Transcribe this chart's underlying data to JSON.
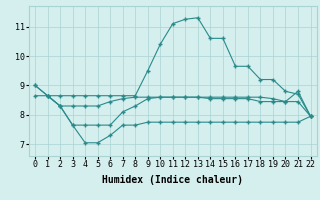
{
  "line1_x": [
    0,
    1,
    2,
    3,
    4,
    5,
    6,
    7,
    8,
    9,
    10,
    11,
    12,
    13,
    14,
    15,
    16,
    17,
    18,
    19,
    20,
    21,
    22
  ],
  "line1_y": [
    9.0,
    8.65,
    8.65,
    8.65,
    8.65,
    8.65,
    8.65,
    8.65,
    8.65,
    9.5,
    10.4,
    11.1,
    11.25,
    11.3,
    10.6,
    10.6,
    9.65,
    9.65,
    9.2,
    9.2,
    8.8,
    8.7,
    7.95
  ],
  "line2_x": [
    0,
    1,
    2,
    3,
    4,
    5,
    6,
    7,
    8,
    9,
    10,
    11,
    12,
    13,
    14,
    15,
    16,
    17,
    18,
    19,
    20,
    21,
    22
  ],
  "line2_y": [
    8.65,
    8.65,
    8.3,
    8.3,
    8.3,
    8.3,
    8.45,
    8.55,
    8.6,
    8.6,
    8.6,
    8.6,
    8.6,
    8.6,
    8.6,
    8.6,
    8.6,
    8.6,
    8.6,
    8.55,
    8.45,
    8.45,
    7.95
  ],
  "line3_x": [
    1,
    2,
    3,
    4,
    5,
    6,
    7,
    8,
    9,
    10,
    11,
    12,
    13,
    14,
    15,
    16,
    17,
    18,
    19,
    20,
    21,
    22
  ],
  "line3_y": [
    8.65,
    8.3,
    7.65,
    7.05,
    7.05,
    7.3,
    7.65,
    7.65,
    7.75,
    7.75,
    7.75,
    7.75,
    7.75,
    7.75,
    7.75,
    7.75,
    7.75,
    7.75,
    7.75,
    7.75,
    7.75,
    7.95
  ],
  "line4_x": [
    0,
    1,
    2,
    3,
    4,
    5,
    6,
    7,
    8,
    9,
    10,
    11,
    12,
    13,
    14,
    15,
    16,
    17,
    18,
    19,
    20,
    21,
    22
  ],
  "line4_y": [
    9.0,
    8.65,
    8.3,
    7.65,
    7.65,
    7.65,
    7.65,
    8.1,
    8.3,
    8.55,
    8.6,
    8.6,
    8.6,
    8.6,
    8.55,
    8.55,
    8.55,
    8.55,
    8.45,
    8.45,
    8.45,
    8.8,
    7.95
  ],
  "line_color": "#2a8a8a",
  "marker": "+",
  "marker_size": 3.5,
  "linewidth": 0.8,
  "bg_color": "#d5eeee",
  "grid_color": "#aad4d4",
  "xlabel": "Humidex (Indice chaleur)",
  "xlim": [
    -0.5,
    22.5
  ],
  "ylim": [
    6.6,
    11.7
  ],
  "yticks": [
    7,
    8,
    9,
    10,
    11
  ],
  "xticks": [
    0,
    1,
    2,
    3,
    4,
    5,
    6,
    7,
    8,
    9,
    10,
    11,
    12,
    13,
    14,
    15,
    16,
    17,
    18,
    19,
    20,
    21,
    22
  ],
  "xlabel_fontsize": 7.0,
  "tick_fontsize": 6.0
}
